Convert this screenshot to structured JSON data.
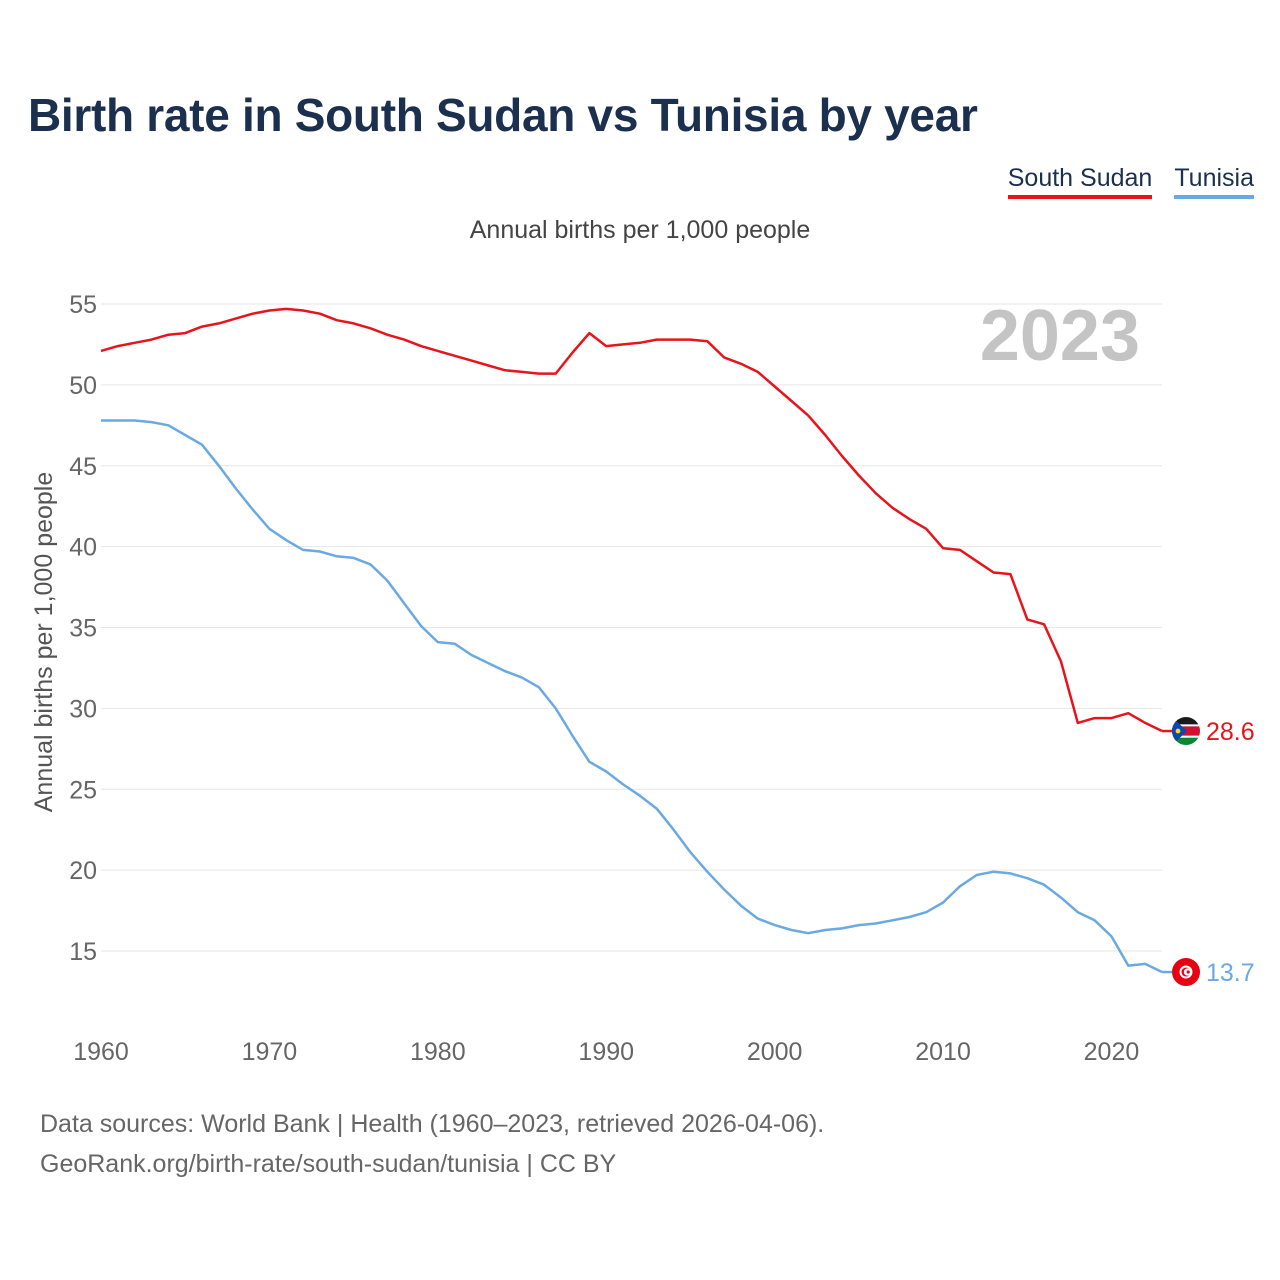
{
  "chart_data": {
    "type": "line",
    "title": "Birth rate in South Sudan vs Tunisia by year",
    "subtitle": "Annual births per 1,000 people",
    "ylabel": "Annual births per 1,000 people",
    "xlabel": "",
    "year_label": "2023",
    "xlim": [
      1960,
      2023
    ],
    "ylim": [
      10.5,
      56
    ],
    "x_ticks": [
      1960,
      1970,
      1980,
      1990,
      2000,
      2010,
      2020
    ],
    "y_ticks": [
      15,
      20,
      25,
      30,
      35,
      40,
      45,
      50,
      55
    ],
    "x": [
      1960,
      1961,
      1962,
      1963,
      1964,
      1965,
      1966,
      1967,
      1968,
      1969,
      1970,
      1971,
      1972,
      1973,
      1974,
      1975,
      1976,
      1977,
      1978,
      1979,
      1980,
      1981,
      1982,
      1983,
      1984,
      1985,
      1986,
      1987,
      1988,
      1989,
      1990,
      1991,
      1992,
      1993,
      1994,
      1995,
      1996,
      1997,
      1998,
      1999,
      2000,
      2001,
      2002,
      2003,
      2004,
      2005,
      2006,
      2007,
      2008,
      2009,
      2010,
      2011,
      2012,
      2013,
      2014,
      2015,
      2016,
      2017,
      2018,
      2019,
      2020,
      2021,
      2022,
      2023
    ],
    "series": [
      {
        "name": "South Sudan",
        "color": "#e8141c",
        "end_label": "28.6",
        "flag": "south-sudan-flag-icon",
        "values": [
          52.1,
          52.4,
          52.6,
          52.8,
          53.1,
          53.2,
          53.6,
          53.8,
          54.1,
          54.4,
          54.6,
          54.7,
          54.6,
          54.4,
          54.0,
          53.8,
          53.5,
          53.1,
          52.8,
          52.4,
          52.1,
          51.8,
          51.5,
          51.2,
          50.9,
          50.8,
          50.7,
          50.7,
          52.0,
          53.2,
          52.4,
          52.5,
          52.6,
          52.8,
          52.8,
          52.8,
          52.7,
          51.7,
          51.3,
          50.8,
          49.9,
          49.0,
          48.1,
          46.9,
          45.6,
          44.4,
          43.3,
          42.4,
          41.7,
          41.1,
          39.9,
          39.8,
          39.1,
          38.4,
          38.3,
          35.5,
          35.2,
          32.9,
          29.1,
          29.4,
          29.4,
          29.7,
          29.1,
          28.6
        ]
      },
      {
        "name": "Tunisia",
        "color": "#6aa9e2",
        "end_label": "13.7",
        "flag": "tunisia-flag-icon",
        "values": [
          47.8,
          47.8,
          47.8,
          47.7,
          47.5,
          46.9,
          46.3,
          45.0,
          43.6,
          42.3,
          41.1,
          40.4,
          39.8,
          39.7,
          39.4,
          39.3,
          38.9,
          37.9,
          36.5,
          35.1,
          34.1,
          34.0,
          33.3,
          32.8,
          32.3,
          31.9,
          31.3,
          30.0,
          28.3,
          26.7,
          26.1,
          25.3,
          24.6,
          23.8,
          22.5,
          21.1,
          19.9,
          18.8,
          17.8,
          17.0,
          16.6,
          16.3,
          16.1,
          16.3,
          16.4,
          16.6,
          16.7,
          16.9,
          17.1,
          17.4,
          18.0,
          19.0,
          19.7,
          19.9,
          19.8,
          19.5,
          19.1,
          18.3,
          17.4,
          16.9,
          15.9,
          14.1,
          14.2,
          13.7
        ]
      }
    ]
  },
  "footer": {
    "line1": "Data sources: World Bank | Health (1960–2023, retrieved 2026-04-06).",
    "line2": "GeoRank.org/birth-rate/south-sudan/tunisia | CC BY"
  }
}
